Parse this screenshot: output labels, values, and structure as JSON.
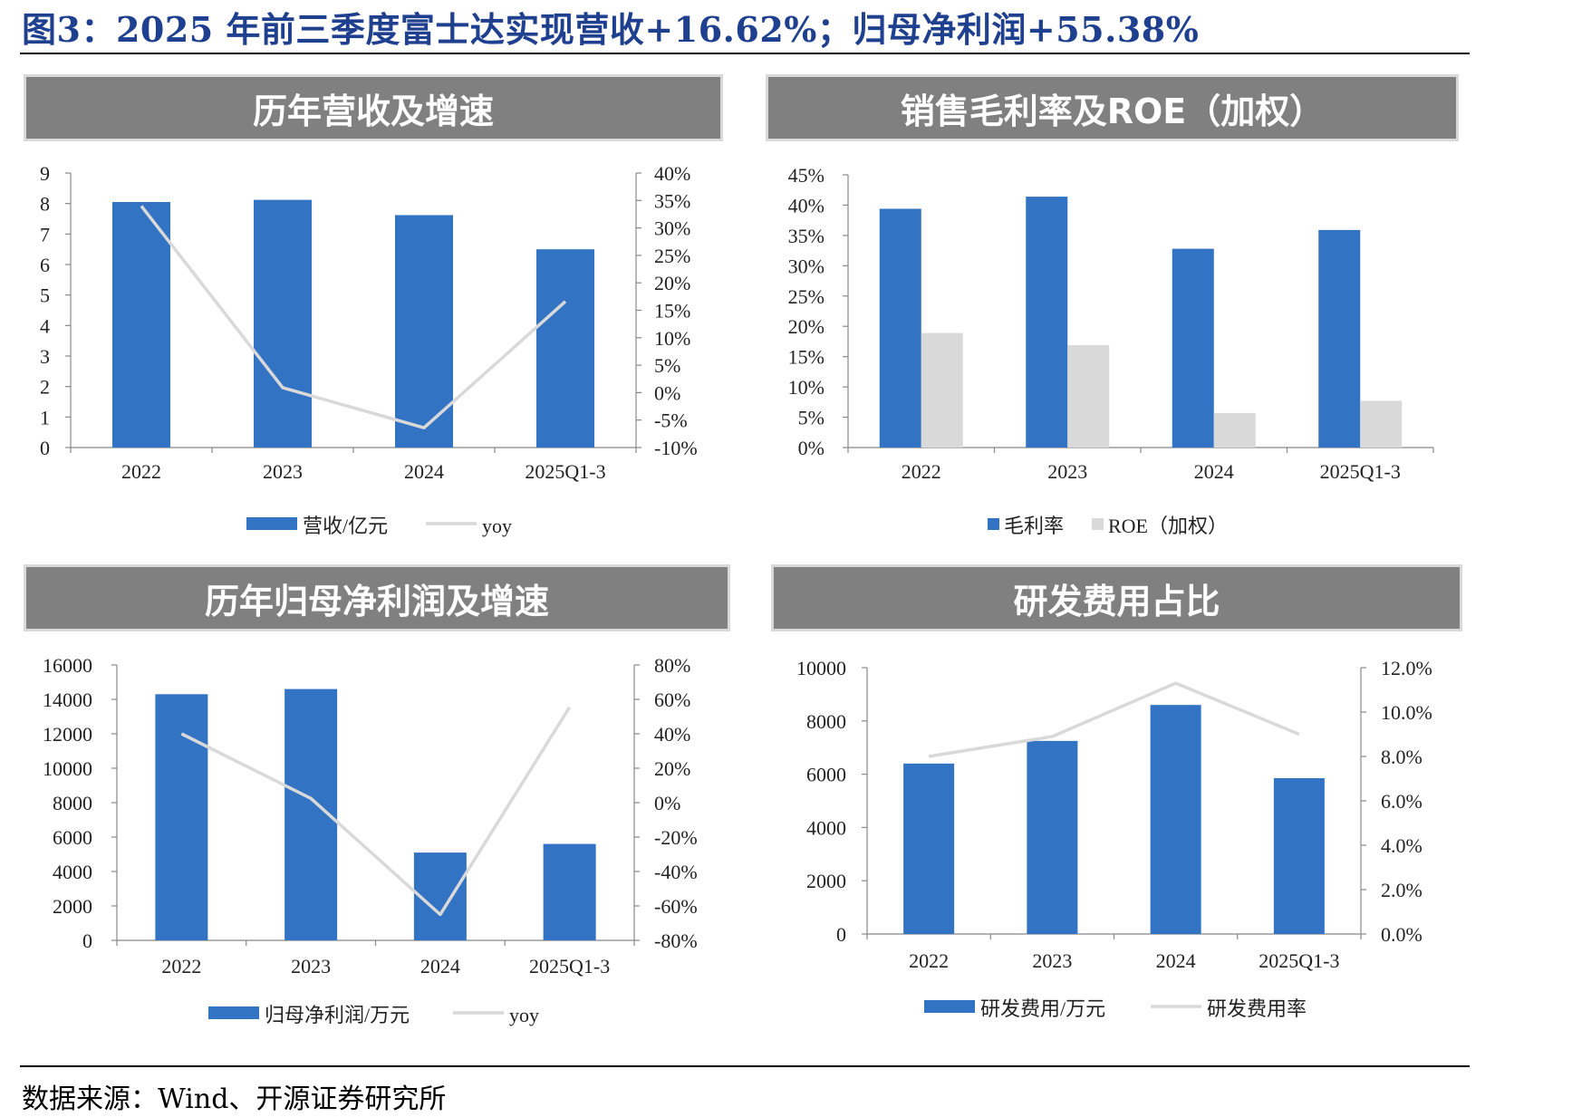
{
  "figure_title": "图3：2025 年前三季度富士达实现营收+16.62%；归母净利润+55.38%",
  "source": "数据来源：Wind、开源证券研究所",
  "colors": {
    "bar_blue": "#3373c4",
    "bar_gray": "#d9d9d9",
    "line_gray": "#d9d9d9",
    "title_blue": "#1f3f8f"
  },
  "chart_data": [
    {
      "id": "revenue",
      "panel_title": "历年营收及增速",
      "type": "bar+line",
      "categories": [
        "2022",
        "2023",
        "2024",
        "2025Q1-3"
      ],
      "left_axis": {
        "min": 0,
        "max": 9,
        "ticks": [
          "0",
          "1",
          "2",
          "3",
          "4",
          "5",
          "6",
          "7",
          "8",
          "9"
        ]
      },
      "right_axis": {
        "min": -10,
        "max": 40,
        "ticks": [
          "-10%",
          "-5%",
          "0%",
          "5%",
          "10%",
          "15%",
          "20%",
          "25%",
          "30%",
          "35%",
          "40%"
        ]
      },
      "bars": [
        {
          "name": "营收/亿元",
          "axis": "left",
          "values": [
            8.05,
            8.12,
            7.62,
            6.5
          ]
        }
      ],
      "lines": [
        {
          "name": "yoy",
          "axis": "right",
          "values": [
            34.0,
            0.9,
            -6.4,
            16.6
          ]
        }
      ],
      "legend": [
        {
          "label": "营收/亿元",
          "kind": "bar",
          "color": "#3373c4"
        },
        {
          "label": "yoy",
          "kind": "line",
          "color": "#d9d9d9"
        }
      ]
    },
    {
      "id": "margin",
      "panel_title": "销售毛利率及ROE（加权）",
      "type": "bar",
      "categories": [
        "2022",
        "2023",
        "2024",
        "2025Q1-3"
      ],
      "left_axis": {
        "min": 0,
        "max": 45,
        "ticks": [
          "0%",
          "5%",
          "10%",
          "15%",
          "20%",
          "25%",
          "30%",
          "35%",
          "40%",
          "45%"
        ]
      },
      "bars": [
        {
          "name": "毛利率",
          "axis": "left",
          "values": [
            39.4,
            41.4,
            32.8,
            35.9
          ]
        },
        {
          "name": "ROE（加权）",
          "axis": "left",
          "values": [
            18.9,
            16.9,
            5.7,
            7.7
          ]
        }
      ],
      "lines": [],
      "legend": [
        {
          "label": "毛利率",
          "kind": "square",
          "color": "#3373c4"
        },
        {
          "label": "ROE（加权）",
          "kind": "square",
          "color": "#d9d9d9"
        }
      ]
    },
    {
      "id": "profit",
      "panel_title": "历年归母净利润及增速",
      "type": "bar+line",
      "categories": [
        "2022",
        "2023",
        "2024",
        "2025Q1-3"
      ],
      "left_axis": {
        "min": 0,
        "max": 16000,
        "ticks": [
          "0",
          "2000",
          "4000",
          "6000",
          "8000",
          "10000",
          "12000",
          "14000",
          "16000"
        ]
      },
      "right_axis": {
        "min": -80,
        "max": 80,
        "ticks": [
          "-80%",
          "-60%",
          "-40%",
          "-20%",
          "0%",
          "20%",
          "40%",
          "60%",
          "80%"
        ]
      },
      "bars": [
        {
          "name": "归母净利润/万元",
          "axis": "left",
          "values": [
            14300,
            14600,
            5100,
            5600
          ]
        }
      ],
      "lines": [
        {
          "name": "yoy",
          "axis": "right",
          "values": [
            40.0,
            2.5,
            -65.0,
            55.4
          ]
        }
      ],
      "legend": [
        {
          "label": "归母净利润/万元",
          "kind": "bar",
          "color": "#3373c4"
        },
        {
          "label": "yoy",
          "kind": "line",
          "color": "#d9d9d9"
        }
      ]
    },
    {
      "id": "rd",
      "panel_title": "研发费用占比",
      "type": "bar+line",
      "categories": [
        "2022",
        "2023",
        "2024",
        "2025Q1-3"
      ],
      "left_axis": {
        "min": 0,
        "max": 10000,
        "ticks": [
          "0",
          "2000",
          "4000",
          "6000",
          "8000",
          "10000"
        ]
      },
      "right_axis": {
        "min": 0,
        "max": 12,
        "ticks": [
          "0.0%",
          "2.0%",
          "4.0%",
          "6.0%",
          "8.0%",
          "10.0%",
          "12.0%"
        ]
      },
      "bars": [
        {
          "name": "研发费用/万元",
          "axis": "left",
          "values": [
            6400,
            7250,
            8600,
            5850
          ]
        }
      ],
      "lines": [
        {
          "name": "研发费用率",
          "axis": "right",
          "values": [
            8.0,
            8.9,
            11.3,
            9.0
          ]
        }
      ],
      "legend": [
        {
          "label": "研发费用/万元",
          "kind": "bar",
          "color": "#3373c4"
        },
        {
          "label": "研发费用率",
          "kind": "line",
          "color": "#d9d9d9"
        }
      ]
    }
  ]
}
